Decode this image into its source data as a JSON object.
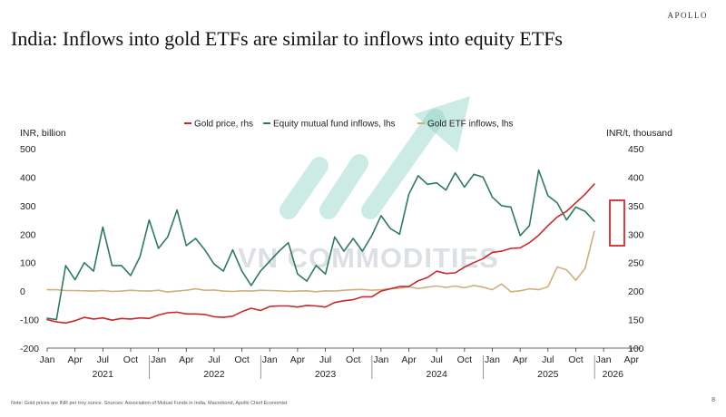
{
  "brand": "APOLLO",
  "title": "India: Inflows into gold ETFs are similar to inflows into equity ETFs",
  "note": "Note: Gold prices are INR per troy ounce. Sources: Association of Mutual Funds in India, Macrobond, Apollo Chief Economist",
  "page_number": "8",
  "watermark": "VN COMMODITIES",
  "colors": {
    "gold_price": "#c8282c",
    "equity": "#2f7a5c",
    "gold_etf": "#cfb07c",
    "highlight": "#d22a2a",
    "watermark_arrow": "#8fd3c4"
  },
  "chart_data": {
    "type": "line",
    "x_label_format": "month index from Jan 2021",
    "left_axis": {
      "label": "INR, billion",
      "ylim": [
        -200,
        500
      ],
      "ticks": [
        "500",
        "400",
        "300",
        "200",
        "100",
        "0",
        "-100",
        "-200"
      ]
    },
    "right_axis": {
      "label": "INR/t, thousand",
      "ylim": [
        100,
        450
      ],
      "ticks": [
        "450",
        "400",
        "350",
        "300",
        "250",
        "200",
        "150",
        "100"
      ]
    },
    "x_tick_labels": [
      "Jan",
      "Apr",
      "Jul",
      "Oct",
      "Jan",
      "Apr",
      "Jul",
      "Oct",
      "Jan",
      "Apr",
      "Jul",
      "Oct",
      "Jan",
      "Apr",
      "Jul",
      "Oct",
      "Jan",
      "Apr",
      "Jul",
      "Oct",
      "Jan",
      "Apr"
    ],
    "year_labels": [
      "2021",
      "2022",
      "2023",
      "2024",
      "2025",
      "2026"
    ],
    "legend": [
      {
        "name": "Gold price, rhs",
        "key": "gold_price"
      },
      {
        "name": "Equity mutual fund inflows, lhs",
        "key": "equity"
      },
      {
        "name": "Gold ETF inflows, lhs",
        "key": "gold_etf"
      }
    ],
    "x_start": "2021-01",
    "series": [
      {
        "name": "Equity mutual fund inflows, lhs",
        "axis": "left",
        "key": "equity",
        "values": [
          -95,
          -100,
          90,
          40,
          100,
          70,
          225,
          90,
          90,
          55,
          120,
          250,
          150,
          190,
          285,
          160,
          185,
          145,
          95,
          70,
          145,
          70,
          20,
          70,
          105,
          140,
          170,
          60,
          35,
          90,
          60,
          190,
          140,
          185,
          140,
          195,
          265,
          220,
          200,
          340,
          405,
          375,
          380,
          355,
          415,
          365,
          410,
          400,
          330,
          300,
          295,
          195,
          230,
          425,
          335,
          310,
          250,
          295,
          280,
          245
        ]
      },
      {
        "name": "Gold ETF inflows, lhs",
        "axis": "left",
        "key": "gold_etf",
        "values": [
          5,
          5,
          2,
          2,
          1,
          0,
          2,
          -1,
          0,
          3,
          1,
          0,
          3,
          -3,
          0,
          3,
          8,
          3,
          4,
          0,
          -1,
          1,
          0,
          3,
          2,
          1,
          -1,
          0,
          1,
          -2,
          1,
          0,
          3,
          5,
          6,
          3,
          5,
          8,
          10,
          15,
          9,
          14,
          18,
          13,
          18,
          12,
          20,
          14,
          5,
          25,
          -2,
          1,
          8,
          5,
          15,
          85,
          75,
          38,
          80,
          210
        ]
      },
      {
        "name": "Gold price, rhs",
        "axis": "right",
        "key": "gold_price",
        "values": [
          150,
          146,
          144,
          148,
          154,
          151,
          153,
          149,
          152,
          151,
          153,
          152,
          158,
          162,
          163,
          160,
          160,
          159,
          155,
          154,
          156,
          164,
          170,
          166,
          173,
          174,
          174,
          172,
          175,
          174,
          172,
          180,
          183,
          185,
          190,
          190,
          200,
          204,
          208,
          208,
          218,
          224,
          235,
          231,
          232,
          242,
          250,
          257,
          268,
          270,
          275,
          276,
          285,
          298,
          315,
          330,
          340,
          355,
          370,
          388
        ]
      }
    ]
  }
}
